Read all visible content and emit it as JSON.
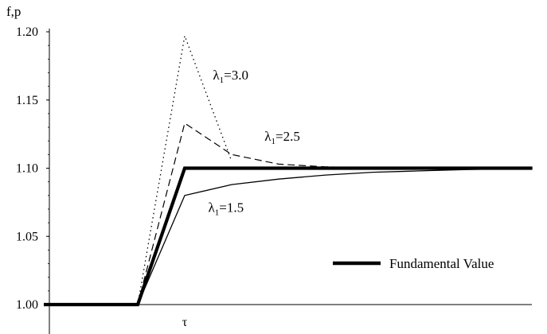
{
  "chart_data": {
    "type": "line",
    "ylabel": "f,p",
    "xlabel": "",
    "ylim": [
      0.99,
      1.215
    ],
    "y_ticks": [
      "1.00",
      "1.05",
      "1.10",
      "1.15",
      "1.20"
    ],
    "x_ticks": [
      "τ"
    ],
    "legend": {
      "position": "bottom-right",
      "label": "Fundamental Value"
    },
    "series": [
      {
        "key": "fundamental",
        "name": "Fundamental Value",
        "style": "thick",
        "points": [
          [
            0,
            1.0
          ],
          [
            1.0,
            1.0
          ],
          [
            1.5,
            1.1
          ],
          [
            5.2,
            1.1
          ]
        ]
      },
      {
        "key": "l15",
        "name": "λ1=1.5",
        "style": "thin",
        "points": [
          [
            1.0,
            1.0
          ],
          [
            1.5,
            1.08
          ],
          [
            2.0,
            1.088
          ],
          [
            2.5,
            1.092
          ],
          [
            3.0,
            1.095
          ],
          [
            3.5,
            1.097
          ],
          [
            4.0,
            1.098
          ],
          [
            4.5,
            1.099
          ],
          [
            5.2,
            1.1
          ]
        ]
      },
      {
        "key": "l25",
        "name": "λ1=2.5",
        "style": "dashed",
        "points": [
          [
            1.0,
            1.0
          ],
          [
            1.5,
            1.133
          ],
          [
            2.0,
            1.11
          ],
          [
            2.5,
            1.103
          ],
          [
            3.0,
            1.101
          ],
          [
            3.5,
            1.1
          ],
          [
            5.2,
            1.1
          ]
        ]
      },
      {
        "key": "l30",
        "name": "λ1=3.0",
        "style": "dotted",
        "points": [
          [
            1.0,
            1.0
          ],
          [
            1.5,
            1.197
          ],
          [
            2.0,
            1.105
          ]
        ]
      }
    ],
    "annotations": [
      {
        "key": "a30",
        "base": "λ",
        "sub": "1",
        "rest": "=3.0",
        "x": 1.8,
        "y": 1.165
      },
      {
        "key": "a25",
        "base": "λ",
        "sub": "1",
        "rest": "=2.5",
        "x": 2.35,
        "y": 1.12
      },
      {
        "key": "a15",
        "base": "λ",
        "sub": "1",
        "rest": "=1.5",
        "x": 1.75,
        "y": 1.068
      }
    ]
  }
}
